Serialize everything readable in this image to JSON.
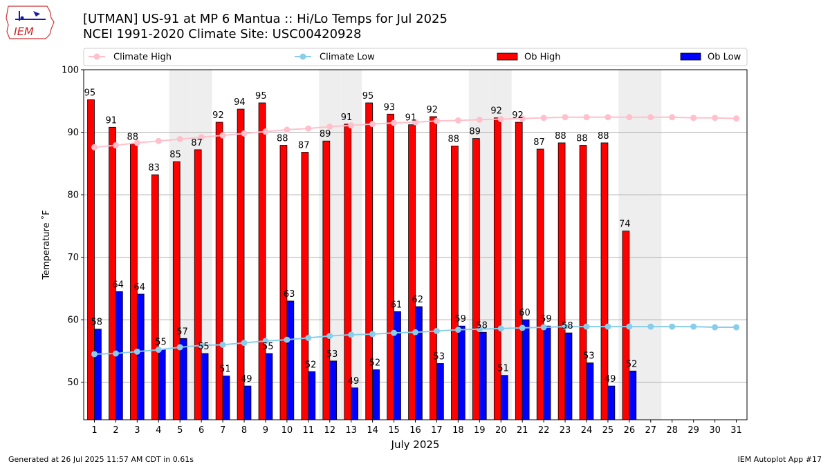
{
  "header": {
    "title_line1": "[UTMAN] US-91 at MP 6 Mantua  :: Hi/Lo Temps for Jul 2025",
    "title_line2": "NCEI 1991-2020 Climate Site: USC00420928",
    "logo_text": "IEM"
  },
  "footer": {
    "left": "Generated at 26 Jul 2025 11:57 AM CDT in 0.61s",
    "right": "IEM Autoplot App #17"
  },
  "chart_data": {
    "type": "bar",
    "xlabel": "July 2025",
    "ylabel": "Temperature ˚F",
    "ylim": [
      44,
      100
    ],
    "yticks": [
      50,
      60,
      70,
      80,
      90,
      100
    ],
    "grid": "horizontal",
    "legend_position": "top",
    "weekend_shading_days": [
      5,
      6,
      12,
      13,
      19,
      20,
      26,
      27
    ],
    "categories": [
      1,
      2,
      3,
      4,
      5,
      6,
      7,
      8,
      9,
      10,
      11,
      12,
      13,
      14,
      15,
      16,
      17,
      18,
      19,
      20,
      21,
      22,
      23,
      24,
      25,
      26,
      27,
      28,
      29,
      30,
      31
    ],
    "series": [
      {
        "name": "Climate High",
        "kind": "line",
        "color": "#ffc0cb",
        "values": [
          87.6,
          87.9,
          88.3,
          88.6,
          88.9,
          89.2,
          89.5,
          89.8,
          90.1,
          90.4,
          90.6,
          90.9,
          91.1,
          91.3,
          91.5,
          91.6,
          91.8,
          91.9,
          92.0,
          92.1,
          92.2,
          92.3,
          92.4,
          92.4,
          92.4,
          92.4,
          92.4,
          92.4,
          92.3,
          92.3,
          92.2
        ]
      },
      {
        "name": "Climate Low",
        "kind": "line",
        "color": "#87ceeb",
        "values": [
          54.5,
          54.6,
          54.9,
          55.2,
          55.6,
          55.9,
          56.0,
          56.3,
          56.6,
          56.8,
          57.1,
          57.4,
          57.6,
          57.7,
          57.9,
          58.0,
          58.2,
          58.4,
          58.5,
          58.6,
          58.7,
          58.8,
          58.9,
          58.9,
          58.9,
          58.9,
          58.9,
          58.9,
          58.9,
          58.8,
          58.8
        ]
      },
      {
        "name": "Ob High",
        "kind": "bar",
        "color": "#ff0000",
        "values": [
          95,
          91,
          88,
          83,
          85,
          87,
          92,
          94,
          95,
          88,
          87,
          89,
          91,
          95,
          93,
          91,
          92,
          88,
          89,
          92,
          92,
          87,
          88,
          88,
          88,
          74,
          null,
          null,
          null,
          null,
          null
        ],
        "plot_values": [
          95.2,
          90.8,
          88.1,
          83.2,
          85.3,
          87.2,
          91.6,
          93.7,
          94.7,
          87.9,
          86.8,
          88.6,
          91.3,
          94.7,
          92.9,
          91.2,
          92.5,
          87.8,
          89.0,
          92.3,
          91.6,
          87.3,
          88.3,
          87.9,
          88.3,
          74.2,
          null,
          null,
          null,
          null,
          null
        ]
      },
      {
        "name": "Ob Low",
        "kind": "bar",
        "color": "#0000ff",
        "values": [
          58,
          64,
          64,
          55,
          57,
          55,
          51,
          49,
          55,
          63,
          52,
          53,
          49,
          52,
          61,
          62,
          53,
          59,
          58,
          51,
          60,
          59,
          58,
          53,
          49,
          52,
          null,
          null,
          null,
          null,
          null
        ],
        "plot_values": [
          58.5,
          64.5,
          64.1,
          55.3,
          57.0,
          54.6,
          51.0,
          49.4,
          54.6,
          63.0,
          51.7,
          53.4,
          49.1,
          52.0,
          61.3,
          62.1,
          53.0,
          59.0,
          58.0,
          51.1,
          60.0,
          59.0,
          57.9,
          53.1,
          49.4,
          51.8,
          null,
          null,
          null,
          null,
          null
        ]
      }
    ]
  }
}
